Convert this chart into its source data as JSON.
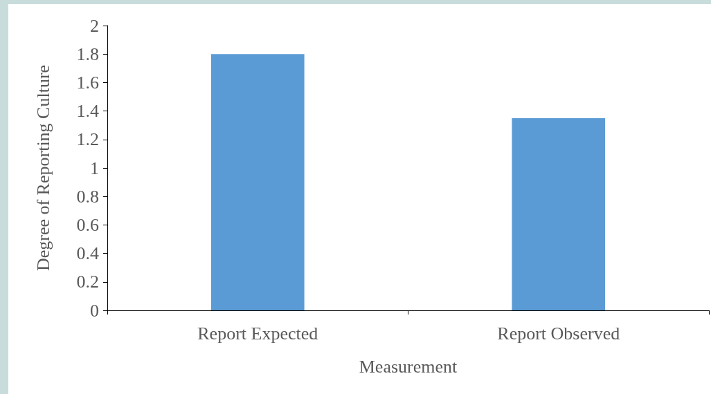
{
  "chart_data": {
    "type": "bar",
    "xlabel": "Measurement",
    "ylabel": "Degree of Reporting Culture",
    "categories": [
      "Report Expected",
      "Report Observed"
    ],
    "values": [
      1.8,
      1.35
    ],
    "color": "#5b9bd5",
    "ylim": [
      0,
      2
    ],
    "yticks": [
      0,
      0.2,
      0.4,
      0.6,
      0.8,
      1,
      1.2,
      1.4,
      1.6,
      1.8,
      2
    ],
    "grid": false
  }
}
